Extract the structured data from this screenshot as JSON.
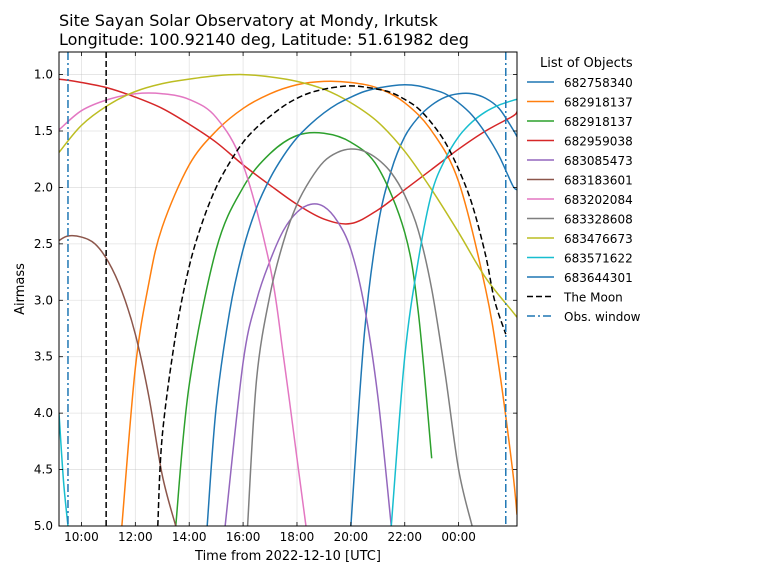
{
  "chart_data": {
    "type": "line",
    "title": "Site Sayan Solar Observatory at Mondy, Irkutsk",
    "subtitle": "Longitude: 100.92140 deg, Latitude: 51.61982 deg",
    "xlabel": "Time from 2022-12-10 [UTC]",
    "ylabel": "Airmass",
    "y_inverted": true,
    "xlim": [
      "2022-12-10 09:10",
      "2022-12-11 02:10"
    ],
    "ylim": [
      5.0,
      0.8
    ],
    "x_ticks": [
      "10:00",
      "12:00",
      "14:00",
      "16:00",
      "18:00",
      "20:00",
      "22:00",
      "00:00"
    ],
    "y_ticks": [
      "1.0",
      "1.5",
      "2.0",
      "2.5",
      "3.0",
      "3.5",
      "4.0",
      "4.5",
      "5.0"
    ],
    "grid": true,
    "legend_title": "List of Objects",
    "legend_position": "outside right",
    "series": [
      {
        "name": "682758340",
        "color": "#1f77b4",
        "style": "solid",
        "x": [
          "20:00",
          "20:30",
          "21:00",
          "21:30",
          "22:00",
          "22:30",
          "23:00",
          "23:30",
          "00:00",
          "00:30",
          "01:00",
          "01:30",
          "02:00",
          "02:10"
        ],
        "y": [
          5.0,
          3.3,
          2.35,
          1.85,
          1.55,
          1.38,
          1.27,
          1.2,
          1.17,
          1.17,
          1.21,
          1.3,
          1.48,
          1.55
        ]
      },
      {
        "name": "682918137",
        "color": "#ff7f0e",
        "style": "solid",
        "x": [
          "11:30",
          "12:00",
          "12:30",
          "13:00",
          "14:00",
          "15:00",
          "16:00",
          "17:00",
          "18:00",
          "19:00",
          "20:00",
          "21:00",
          "22:00",
          "23:00",
          "00:00",
          "01:00",
          "01:30",
          "02:00",
          "02:10"
        ],
        "y": [
          5.0,
          3.6,
          2.85,
          2.35,
          1.8,
          1.5,
          1.3,
          1.17,
          1.09,
          1.06,
          1.07,
          1.12,
          1.25,
          1.5,
          1.95,
          2.9,
          3.6,
          4.5,
          4.9
        ]
      },
      {
        "name": "682918137",
        "color": "#2ca02c",
        "style": "solid",
        "x": [
          "13:30",
          "14:00",
          "15:00",
          "16:00",
          "17:00",
          "18:00",
          "19:00",
          "20:00",
          "21:00",
          "22:00",
          "22:30",
          "23:00"
        ],
        "y": [
          5.0,
          3.75,
          2.55,
          2.0,
          1.7,
          1.54,
          1.52,
          1.6,
          1.82,
          2.4,
          3.1,
          4.4
        ]
      },
      {
        "name": "682959038",
        "color": "#d62728",
        "style": "solid",
        "x": [
          "09:10",
          "10:00",
          "11:00",
          "12:00",
          "13:00",
          "14:00",
          "15:00",
          "16:00",
          "17:00",
          "18:00",
          "19:00",
          "20:00",
          "21:00",
          "22:00",
          "23:00",
          "00:00",
          "01:00",
          "02:00",
          "02:10"
        ],
        "y": [
          1.04,
          1.07,
          1.12,
          1.2,
          1.3,
          1.44,
          1.6,
          1.8,
          1.98,
          2.15,
          2.28,
          2.32,
          2.2,
          2.02,
          1.84,
          1.66,
          1.5,
          1.37,
          1.33
        ]
      },
      {
        "name": "683085473",
        "color": "#9467bd",
        "style": "solid",
        "x": [
          "15:20",
          "16:00",
          "16:30",
          "17:00",
          "17:30",
          "18:00",
          "18:30",
          "19:00",
          "19:30",
          "20:00",
          "20:30",
          "21:00",
          "21:30"
        ],
        "y": [
          5.0,
          3.55,
          3.0,
          2.65,
          2.38,
          2.22,
          2.15,
          2.17,
          2.3,
          2.55,
          3.05,
          3.85,
          5.0
        ]
      },
      {
        "name": "683183601",
        "color": "#8c564b",
        "style": "solid",
        "x": [
          "09:10",
          "09:30",
          "10:00",
          "10:30",
          "11:00",
          "11:30",
          "12:00",
          "12:30",
          "13:00",
          "13:30"
        ],
        "y": [
          2.47,
          2.43,
          2.44,
          2.5,
          2.66,
          2.92,
          3.3,
          3.85,
          4.55,
          5.0
        ]
      },
      {
        "name": "683202084",
        "color": "#e377c2",
        "style": "solid",
        "x": [
          "09:10",
          "10:00",
          "11:00",
          "12:00",
          "13:00",
          "14:00",
          "15:00",
          "16:00",
          "17:00",
          "17:30",
          "18:00",
          "18:20"
        ],
        "y": [
          1.49,
          1.32,
          1.22,
          1.17,
          1.17,
          1.22,
          1.38,
          1.8,
          2.7,
          3.5,
          4.4,
          5.0
        ]
      },
      {
        "name": "683328608",
        "color": "#7f7f7f",
        "style": "solid",
        "x": [
          "16:10",
          "16:30",
          "17:00",
          "17:30",
          "18:00",
          "18:30",
          "19:00",
          "19:30",
          "20:00",
          "20:30",
          "21:00",
          "21:30",
          "22:00",
          "22:30",
          "23:00",
          "23:30",
          "00:00",
          "00:30"
        ],
        "y": [
          5.0,
          3.7,
          2.95,
          2.48,
          2.15,
          1.93,
          1.77,
          1.69,
          1.66,
          1.68,
          1.75,
          1.87,
          2.07,
          2.38,
          2.9,
          3.65,
          4.5,
          5.0
        ]
      },
      {
        "name": "683476673",
        "color": "#bcbd22",
        "style": "solid",
        "x": [
          "09:10",
          "10:00",
          "11:00",
          "12:00",
          "13:00",
          "14:00",
          "15:00",
          "16:00",
          "17:00",
          "18:00",
          "19:00",
          "20:00",
          "21:00",
          "22:00",
          "23:00",
          "00:00",
          "01:00",
          "02:00",
          "02:10"
        ],
        "y": [
          1.69,
          1.45,
          1.27,
          1.15,
          1.08,
          1.04,
          1.01,
          1.0,
          1.02,
          1.06,
          1.13,
          1.25,
          1.42,
          1.68,
          2.02,
          2.4,
          2.8,
          3.1,
          3.15
        ]
      },
      {
        "name": "683571622",
        "color": "#17becf",
        "style": "solid",
        "x": [
          "09:10",
          "09:20",
          "09:30",
          "21:30",
          "22:00",
          "22:30",
          "23:00",
          "23:30",
          "00:00",
          "00:30",
          "01:00",
          "01:30",
          "02:00",
          "02:10"
        ],
        "y": [
          4.0,
          4.6,
          5.0,
          5.0,
          3.5,
          2.65,
          2.05,
          1.75,
          1.55,
          1.42,
          1.33,
          1.27,
          1.23,
          1.22
        ]
      },
      {
        "name": "683644301",
        "color": "#1f77b4",
        "style": "solid",
        "x": [
          "14:40",
          "15:00",
          "15:30",
          "16:00",
          "16:30",
          "17:00",
          "17:30",
          "18:00",
          "18:30",
          "19:00",
          "19:30",
          "20:00",
          "20:30",
          "21:00",
          "21:30",
          "22:00",
          "22:30",
          "23:00",
          "23:30",
          "00:00",
          "00:30",
          "01:00",
          "01:30",
          "02:00",
          "02:10"
        ],
        "y": [
          5.0,
          3.95,
          3.1,
          2.55,
          2.18,
          1.92,
          1.72,
          1.56,
          1.44,
          1.34,
          1.26,
          1.2,
          1.15,
          1.12,
          1.1,
          1.09,
          1.1,
          1.13,
          1.17,
          1.25,
          1.36,
          1.52,
          1.72,
          1.98,
          2.02
        ]
      },
      {
        "name": "The Moon",
        "color": "#000000",
        "style": "dashed",
        "x": [
          "12:50",
          "13:00",
          "13:30",
          "14:00",
          "14:30",
          "15:00",
          "15:30",
          "16:00",
          "16:30",
          "17:00",
          "17:30",
          "18:00",
          "18:30",
          "19:00",
          "19:30",
          "20:00",
          "20:30",
          "21:00",
          "21:30",
          "22:00",
          "22:30",
          "23:00",
          "23:30",
          "00:00",
          "00:30",
          "01:00",
          "01:20",
          "01:45"
        ],
        "y": [
          5.0,
          4.2,
          3.3,
          2.7,
          2.3,
          2.0,
          1.78,
          1.6,
          1.47,
          1.37,
          1.28,
          1.21,
          1.16,
          1.13,
          1.11,
          1.1,
          1.11,
          1.13,
          1.16,
          1.22,
          1.3,
          1.43,
          1.6,
          1.84,
          2.15,
          2.6,
          3.0,
          3.3
        ]
      }
    ],
    "obs_window": {
      "name": "Obs. window",
      "color": "#1f77b4",
      "style": "dashdot",
      "x": [
        "09:30",
        "01:45"
      ]
    },
    "moon_vline": {
      "name": "The Moon",
      "color": "#000000",
      "style": "dashed",
      "x": "10:55"
    }
  }
}
